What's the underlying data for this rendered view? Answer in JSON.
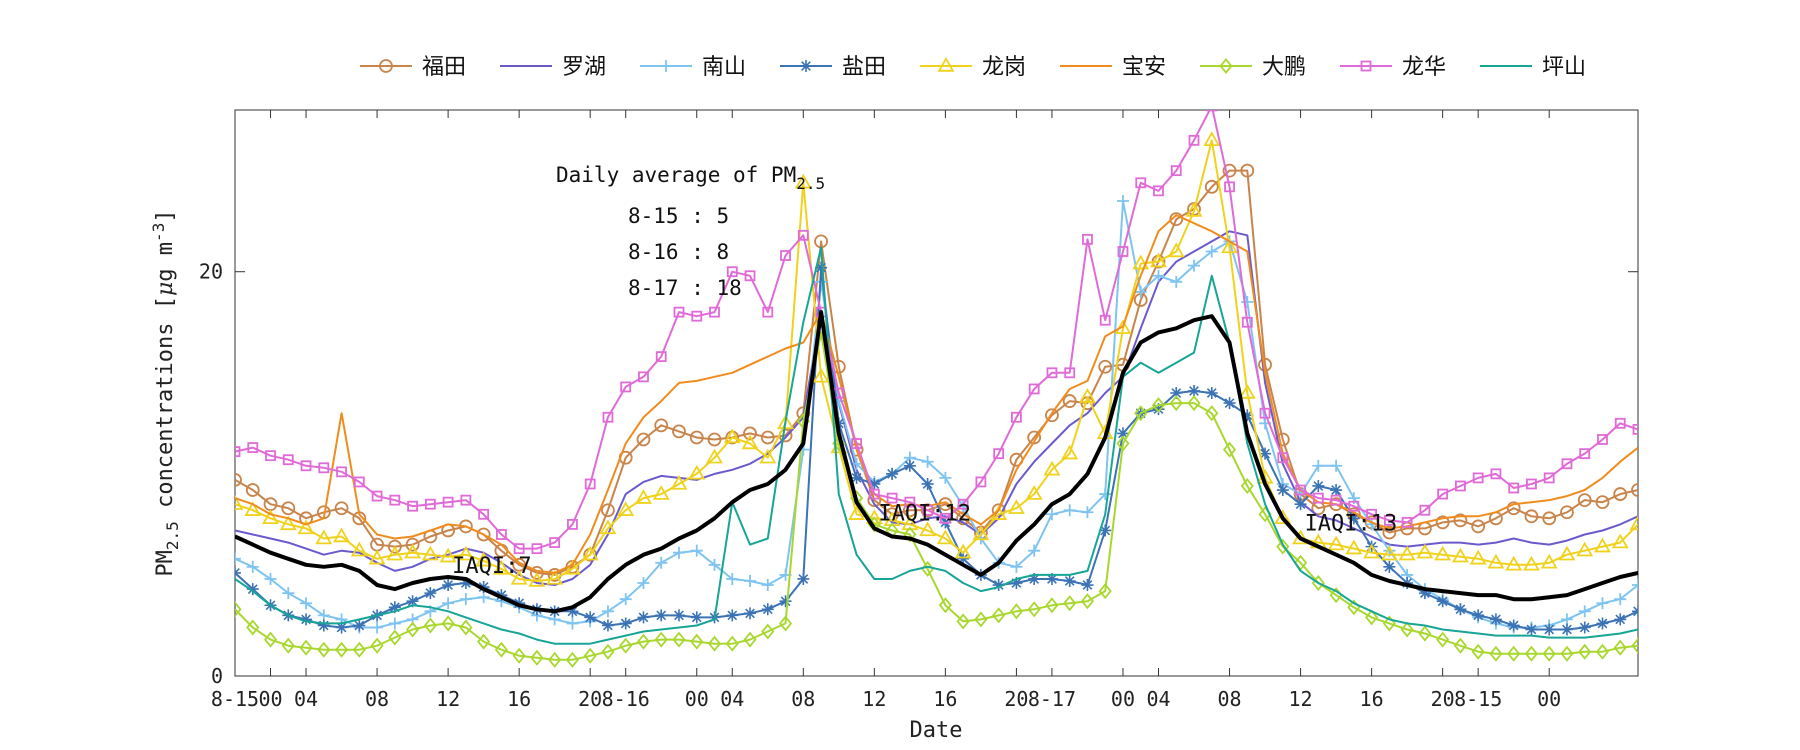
{
  "chart_data": {
    "type": "line",
    "xlabel": "Date",
    "ylabel_main": "PM",
    "ylabel_sub": "2.5",
    "ylabel_rest": " concentrations [",
    "ylabel_mu": "μ",
    "ylabel_unit": "g m",
    "ylabel_exp": "-3",
    "ylabel_close": "]",
    "ylim": [
      0,
      28
    ],
    "yticks": [
      0,
      20
    ],
    "xlim": [
      0,
      79
    ],
    "xticks": [
      {
        "x": 0,
        "label": "8-15"
      },
      {
        "x": 2,
        "label": "00"
      },
      {
        "x": 4,
        "label": "04"
      },
      {
        "x": 8,
        "label": "08"
      },
      {
        "x": 12,
        "label": "12"
      },
      {
        "x": 16,
        "label": "16"
      },
      {
        "x": 20,
        "label": "20"
      },
      {
        "x": 22,
        "label": "8-16"
      },
      {
        "x": 26,
        "label": "00"
      },
      {
        "x": 28,
        "label": "04"
      },
      {
        "x": 32,
        "label": "08"
      },
      {
        "x": 36,
        "label": "12"
      },
      {
        "x": 40,
        "label": "16"
      },
      {
        "x": 44,
        "label": "20"
      },
      {
        "x": 46,
        "label": "8-17"
      },
      {
        "x": 50,
        "label": "00"
      },
      {
        "x": 52,
        "label": "04"
      },
      {
        "x": 56,
        "label": "08"
      },
      {
        "x": 60,
        "label": "12"
      },
      {
        "x": 64,
        "label": "16"
      },
      {
        "x": 68,
        "label": "20"
      },
      {
        "x": 70,
        "label": "8-15"
      },
      {
        "x": 74,
        "label": "00"
      }
    ],
    "legend_placement": "top, outside",
    "annotation": {
      "title": "Daily average of PM",
      "title_sub": "2.5",
      "lines": [
        "8-15 : 5",
        "8-16 : 8",
        "8-17 : 18"
      ]
    },
    "iaqi_labels": [
      {
        "x": 12,
        "y": 5.5,
        "text": "IAQI:7"
      },
      {
        "x": 36,
        "y": 8.1,
        "text": "IAQI:12"
      },
      {
        "x": 60,
        "y": 7.6,
        "text": "IAQI:13"
      }
    ],
    "series": [
      {
        "name": "福田",
        "color": "#c8844a",
        "marker": "circle",
        "values": [
          9.7,
          9.2,
          8.5,
          8.3,
          7.8,
          8.1,
          8.3,
          7.8,
          6.5,
          6.4,
          6.5,
          6.9,
          7.2,
          7.4,
          7.0,
          6.2,
          5.5,
          5.1,
          5.0,
          5.4,
          6.0,
          8.2,
          10.8,
          11.7,
          12.4,
          12.1,
          11.8,
          11.7,
          11.8,
          12.0,
          11.8,
          11.9,
          13.0,
          21.5,
          15.3,
          11.2,
          8.7,
          8.0,
          8.2,
          8.2,
          8.5,
          7.8,
          7.1,
          8.2,
          10.7,
          11.8,
          12.9,
          13.6,
          13.5,
          15.3,
          15.4,
          18.6,
          20.5,
          22.6,
          23.1,
          24.2,
          25.0,
          25.0,
          15.4,
          11.7,
          9.0,
          8.3,
          8.5,
          8.0,
          7.6,
          7.1,
          7.3,
          7.3,
          7.6,
          7.7,
          7.4,
          7.8,
          8.3,
          7.9,
          7.8,
          8.1,
          8.7,
          8.6,
          9.0,
          9.2
        ]
      },
      {
        "name": "罗湖",
        "color": "#6a5acd",
        "marker": "none",
        "values": [
          7.2,
          7.0,
          6.8,
          6.6,
          6.3,
          6.0,
          6.2,
          6.1,
          5.6,
          5.2,
          5.4,
          5.8,
          6.0,
          6.3,
          6.1,
          5.6,
          5.0,
          4.6,
          4.5,
          4.8,
          5.5,
          7.0,
          9.0,
          9.6,
          9.9,
          9.8,
          9.7,
          10.0,
          10.2,
          10.5,
          11.0,
          11.8,
          12.8,
          18.0,
          13.5,
          10.2,
          8.5,
          7.6,
          7.5,
          7.8,
          7.9,
          7.6,
          7.0,
          7.8,
          9.5,
          10.6,
          11.5,
          12.4,
          13.0,
          14.0,
          14.8,
          17.2,
          19.5,
          20.5,
          21.0,
          21.5,
          22.0,
          21.8,
          14.5,
          10.5,
          8.6,
          7.9,
          7.7,
          7.3,
          6.9,
          6.5,
          6.4,
          6.5,
          6.6,
          6.6,
          6.5,
          6.6,
          6.8,
          6.6,
          6.5,
          6.7,
          7.0,
          7.2,
          7.5,
          7.9
        ]
      },
      {
        "name": "南山",
        "color": "#7fc4f0",
        "marker": "plus",
        "values": [
          5.8,
          5.4,
          4.8,
          4.1,
          3.6,
          3.0,
          2.8,
          2.4,
          2.4,
          2.6,
          2.8,
          3.2,
          3.6,
          3.8,
          3.9,
          3.7,
          3.4,
          3.0,
          2.8,
          2.6,
          2.7,
          3.2,
          3.8,
          4.6,
          5.6,
          6.1,
          6.2,
          5.5,
          4.8,
          4.7,
          4.5,
          5.0,
          11.2,
          19.5,
          13.6,
          10.5,
          9.6,
          10.0,
          10.8,
          10.6,
          9.8,
          8.4,
          6.8,
          5.6,
          5.4,
          6.2,
          8.0,
          8.2,
          8.1,
          9.0,
          23.5,
          19.0,
          19.8,
          19.5,
          20.3,
          21.0,
          21.5,
          18.5,
          12.5,
          9.5,
          9.0,
          10.4,
          10.4,
          8.8,
          7.5,
          6.2,
          5.0,
          4.3,
          3.8,
          3.3,
          2.9,
          2.6,
          2.4,
          2.4,
          2.5,
          2.8,
          3.2,
          3.6,
          3.8,
          4.5
        ]
      },
      {
        "name": "盐田",
        "color": "#3b73b5",
        "marker": "star",
        "values": [
          5.1,
          4.3,
          3.5,
          3.0,
          2.8,
          2.5,
          2.4,
          2.5,
          3.0,
          3.4,
          3.7,
          4.1,
          4.5,
          4.6,
          4.4,
          4.0,
          3.6,
          3.3,
          3.2,
          3.2,
          2.9,
          2.5,
          2.6,
          2.9,
          3.0,
          3.0,
          2.9,
          2.9,
          3.0,
          3.1,
          3.3,
          3.7,
          4.8,
          20.2,
          12.5,
          9.8,
          9.5,
          10.0,
          10.4,
          9.5,
          7.6,
          5.8,
          5.0,
          4.5,
          4.6,
          4.8,
          4.8,
          4.7,
          4.5,
          7.2,
          12.0,
          13.0,
          13.2,
          14.0,
          14.1,
          14.0,
          13.5,
          12.9,
          11.0,
          9.2,
          8.5,
          9.4,
          9.2,
          7.8,
          6.4,
          5.4,
          4.6,
          4.1,
          3.7,
          3.3,
          3.0,
          2.8,
          2.5,
          2.3,
          2.3,
          2.3,
          2.4,
          2.6,
          2.8,
          3.2
        ]
      },
      {
        "name": "龙岗",
        "color": "#f0d21c",
        "marker": "triangle",
        "values": [
          8.5,
          8.2,
          7.8,
          7.5,
          7.3,
          6.8,
          6.9,
          6.2,
          5.8,
          6.0,
          6.1,
          6.0,
          5.9,
          6.0,
          5.7,
          5.3,
          4.8,
          4.7,
          4.8,
          5.3,
          6.0,
          7.3,
          8.2,
          8.8,
          9.0,
          9.5,
          10.0,
          10.8,
          11.8,
          11.5,
          10.8,
          12.5,
          24.4,
          14.8,
          11.3,
          8.0,
          7.8,
          7.7,
          7.5,
          7.2,
          6.8,
          6.1,
          7.0,
          8.0,
          8.3,
          9.0,
          10.2,
          11.0,
          13.8,
          12.0,
          17.2,
          20.4,
          20.5,
          21.0,
          23.0,
          26.5,
          21.2,
          14.0,
          9.8,
          7.8,
          6.8,
          6.6,
          6.5,
          6.3,
          6.1,
          6.0,
          6.0,
          6.1,
          6.0,
          5.9,
          5.8,
          5.6,
          5.5,
          5.5,
          5.6,
          6.0,
          6.2,
          6.4,
          6.6,
          7.5
        ]
      },
      {
        "name": "宝安",
        "color": "#f08c1e",
        "marker": "none",
        "values": [
          8.8,
          8.5,
          8.0,
          7.8,
          7.5,
          7.8,
          13.0,
          8.0,
          7.0,
          6.8,
          6.9,
          7.2,
          7.5,
          7.4,
          7.0,
          6.5,
          5.6,
          5.2,
          5.1,
          5.5,
          7.0,
          9.2,
          11.5,
          12.8,
          13.6,
          14.5,
          14.6,
          14.8,
          15.0,
          15.4,
          15.8,
          16.2,
          16.5,
          18.0,
          14.8,
          11.2,
          9.0,
          8.4,
          8.5,
          8.4,
          8.6,
          8.0,
          7.5,
          8.2,
          10.2,
          11.6,
          13.0,
          14.2,
          14.6,
          16.8,
          17.3,
          19.8,
          22.0,
          22.8,
          22.4,
          22.0,
          21.5,
          21.0,
          15.0,
          11.0,
          9.2,
          8.6,
          8.5,
          8.1,
          7.6,
          7.3,
          7.4,
          7.6,
          7.8,
          7.9,
          7.9,
          8.1,
          8.5,
          8.6,
          8.7,
          8.9,
          9.2,
          9.8,
          10.6,
          11.3
        ]
      },
      {
        "name": "大鹏",
        "color": "#a8d82e",
        "marker": "diamond",
        "values": [
          3.3,
          2.4,
          1.8,
          1.5,
          1.4,
          1.3,
          1.3,
          1.3,
          1.5,
          1.9,
          2.3,
          2.5,
          2.6,
          2.4,
          1.7,
          1.3,
          1.0,
          0.9,
          0.8,
          0.8,
          1.0,
          1.2,
          1.5,
          1.7,
          1.8,
          1.8,
          1.7,
          1.6,
          1.6,
          1.8,
          2.2,
          2.6,
          12.6,
          17.0,
          11.5,
          8.8,
          7.5,
          7.2,
          7.0,
          5.3,
          3.5,
          2.7,
          2.8,
          3.0,
          3.2,
          3.3,
          3.5,
          3.6,
          3.7,
          4.2,
          11.5,
          13.0,
          13.4,
          13.5,
          13.5,
          13.0,
          11.2,
          9.4,
          8.0,
          6.4,
          5.6,
          4.6,
          4.0,
          3.4,
          2.9,
          2.6,
          2.3,
          2.1,
          1.8,
          1.5,
          1.2,
          1.1,
          1.1,
          1.1,
          1.1,
          1.1,
          1.2,
          1.2,
          1.4,
          1.5
        ]
      },
      {
        "name": "龙华",
        "color": "#e06ad8",
        "marker": "square",
        "values": [
          11.1,
          11.3,
          10.9,
          10.7,
          10.4,
          10.3,
          10.1,
          9.6,
          8.9,
          8.7,
          8.4,
          8.5,
          8.6,
          8.7,
          8.0,
          7.0,
          6.3,
          6.3,
          6.6,
          7.5,
          9.5,
          12.8,
          14.3,
          14.8,
          15.8,
          18.0,
          17.8,
          18.0,
          20.0,
          19.8,
          18.0,
          20.8,
          21.8,
          18.0,
          14.0,
          11.5,
          9.0,
          8.8,
          8.6,
          8.2,
          7.8,
          8.5,
          9.6,
          11.0,
          12.8,
          14.2,
          15.0,
          15.0,
          21.6,
          17.6,
          21.0,
          24.4,
          24.0,
          25.0,
          26.5,
          28.2,
          24.2,
          17.5,
          13.0,
          10.8,
          9.2,
          8.8,
          8.7,
          8.4,
          8.0,
          7.7,
          7.6,
          8.2,
          9.0,
          9.4,
          9.8,
          10.0,
          9.3,
          9.5,
          9.8,
          10.5,
          11.0,
          11.7,
          12.5,
          12.2
        ]
      },
      {
        "name": "坪山",
        "color": "#17a596",
        "marker": "none",
        "values": [
          4.8,
          4.2,
          3.5,
          3.0,
          2.7,
          2.6,
          2.6,
          2.8,
          3.0,
          3.2,
          3.5,
          3.4,
          3.2,
          2.9,
          2.6,
          2.3,
          2.1,
          1.8,
          1.6,
          1.6,
          1.6,
          1.8,
          2.0,
          2.2,
          2.3,
          2.4,
          2.5,
          2.8,
          8.6,
          6.5,
          6.8,
          12.6,
          17.5,
          21.2,
          9.0,
          6.0,
          4.8,
          4.8,
          5.2,
          5.4,
          5.2,
          4.6,
          4.2,
          4.4,
          4.8,
          5.0,
          5.0,
          5.0,
          5.2,
          8.0,
          14.8,
          15.5,
          15.0,
          15.5,
          16.0,
          19.8,
          16.5,
          11.5,
          8.5,
          6.5,
          5.2,
          4.6,
          4.2,
          3.6,
          3.2,
          2.8,
          2.6,
          2.5,
          2.3,
          2.2,
          2.1,
          2.0,
          2.0,
          2.0,
          1.9,
          1.9,
          1.9,
          2.0,
          2.1,
          2.3
        ]
      },
      {
        "name": "",
        "color": "#000000",
        "marker": "none",
        "values": [
          6.9,
          6.5,
          6.1,
          5.8,
          5.5,
          5.4,
          5.5,
          5.2,
          4.5,
          4.3,
          4.6,
          4.8,
          4.9,
          4.8,
          4.3,
          3.9,
          3.5,
          3.3,
          3.2,
          3.4,
          3.9,
          4.8,
          5.5,
          6.0,
          6.3,
          6.8,
          7.2,
          7.8,
          8.6,
          9.2,
          9.5,
          10.2,
          11.5,
          18.0,
          12.0,
          8.6,
          7.3,
          6.9,
          6.8,
          6.5,
          6.0,
          5.5,
          5.0,
          5.6,
          6.7,
          7.5,
          8.5,
          9.0,
          10.0,
          11.8,
          15.0,
          16.5,
          17.0,
          17.2,
          17.6,
          17.8,
          16.5,
          12.0,
          9.5,
          7.8,
          6.8,
          6.4,
          6.0,
          5.6,
          5.0,
          4.7,
          4.5,
          4.3,
          4.2,
          4.1,
          4.0,
          4.0,
          3.8,
          3.8,
          3.9,
          4.0,
          4.3,
          4.6,
          4.9,
          5.1
        ]
      }
    ]
  }
}
